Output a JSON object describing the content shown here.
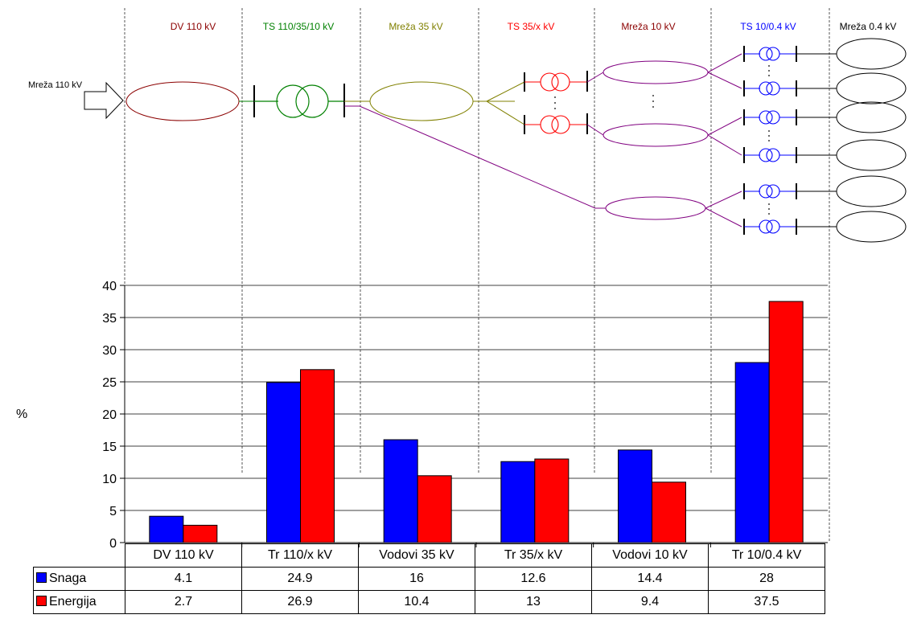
{
  "diagram": {
    "columns": [
      {
        "label": "DV 110 kV",
        "color": "#8B0000"
      },
      {
        "label": "TS 110/35/10 kV",
        "color": "#008000"
      },
      {
        "label": "Mreža 35 kV",
        "color": "#808000"
      },
      {
        "label": "TS 35/x kV",
        "color": "#FF0000"
      },
      {
        "label": "Mreža 10 kV",
        "color": "#8B0000"
      },
      {
        "label": "TS 10/0.4 kV",
        "color": "#0000FF"
      },
      {
        "label": "Mreža 0.4 kV",
        "color": "#000000"
      }
    ],
    "input_label": "Mreža 110 kV",
    "element_colors": {
      "line_110": "#8B0000",
      "ts_110": "#008000",
      "net_35": "#808000",
      "ts_35": "#FF0000",
      "net_10": "#800080",
      "ts_04": "#0000FF",
      "net_04": "#000000"
    }
  },
  "chart_data": {
    "type": "bar",
    "ylabel": "%",
    "ylim": [
      0,
      40
    ],
    "yticks": [
      0,
      5,
      10,
      15,
      20,
      25,
      30,
      35,
      40
    ],
    "grid": true,
    "categories": [
      "DV 110 kV",
      "Tr 110/x kV",
      "Vodovi 35 kV",
      "Tr 35/x kV",
      "Vodovi 10 kV",
      "Tr 10/0.4 kV"
    ],
    "series": [
      {
        "name": "Snaga",
        "color": "#0000FF",
        "values": [
          4.1,
          24.9,
          16,
          12.6,
          14.4,
          28
        ]
      },
      {
        "name": "Energija",
        "color": "#FF0000",
        "values": [
          2.7,
          26.9,
          10.4,
          13,
          9.4,
          37.5
        ]
      }
    ],
    "table": {
      "rows": [
        {
          "name": "Snaga",
          "values": [
            "4.1",
            "24.9",
            "16",
            "12.6",
            "14.4",
            "28"
          ]
        },
        {
          "name": "Energija",
          "values": [
            "2.7",
            "26.9",
            "10.4",
            "13",
            "9.4",
            "37.5"
          ]
        }
      ]
    }
  }
}
